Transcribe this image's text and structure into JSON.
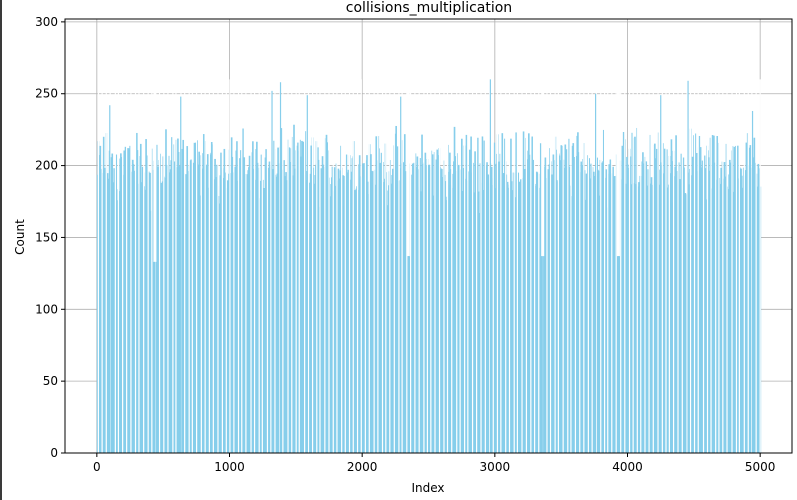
{
  "chart_data": {
    "type": "bar",
    "title": "collisions_multiplication",
    "xlabel": "Index",
    "ylabel": "Count",
    "xlim": [
      -240,
      5240
    ],
    "ylim": [
      0,
      302
    ],
    "xticks": [
      0,
      1000,
      2000,
      3000,
      4000,
      5000
    ],
    "yticks": [
      0,
      50,
      100,
      150,
      200,
      250,
      300
    ],
    "grid": true,
    "bar_color": "#87CEEB",
    "n_bars": 5000,
    "typical_range": [
      160,
      230
    ],
    "peaks": [
      {
        "x": 93,
        "y": 242
      },
      {
        "x": 628,
        "y": 248
      },
      {
        "x": 1316,
        "y": 252
      },
      {
        "x": 1380,
        "y": 258
      },
      {
        "x": 1582,
        "y": 249
      },
      {
        "x": 2286,
        "y": 248
      },
      {
        "x": 2962,
        "y": 260
      },
      {
        "x": 3755,
        "y": 250
      },
      {
        "x": 4246,
        "y": 249
      },
      {
        "x": 4452,
        "y": 259
      },
      {
        "x": 4938,
        "y": 238
      }
    ],
    "dips": [
      {
        "x": 434,
        "y": 133
      },
      {
        "x": 2344,
        "y": 137
      },
      {
        "x": 3357,
        "y": 137
      },
      {
        "x": 3928,
        "y": 137
      }
    ]
  }
}
